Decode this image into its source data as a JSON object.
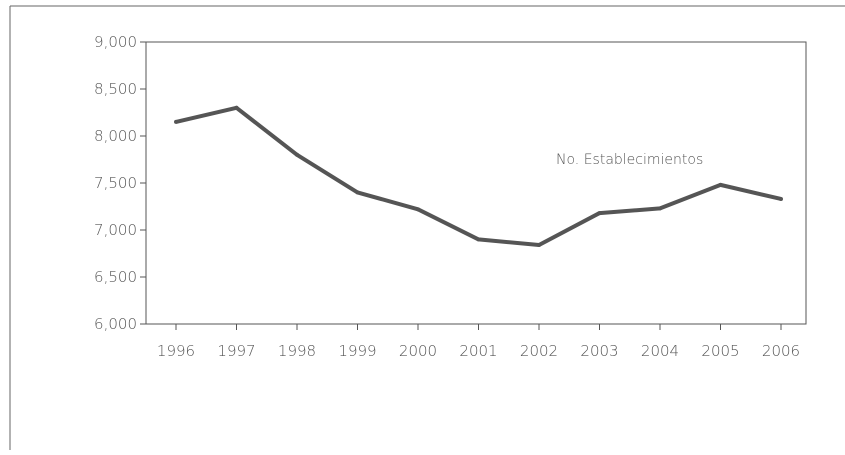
{
  "chart_data": {
    "type": "line",
    "x": [
      "1996",
      "1997",
      "1998",
      "1999",
      "2000",
      "2001",
      "2002",
      "2003",
      "2004",
      "2005",
      "2006"
    ],
    "series": [
      {
        "name": "No. Establecimientos",
        "values": [
          8150,
          8300,
          7800,
          7400,
          7220,
          6900,
          6840,
          7180,
          7230,
          7480,
          7330
        ]
      }
    ],
    "y_ticks": [
      "6,000",
      "6,500",
      "7,000",
      "7,500",
      "8,000",
      "8,500",
      "9,000"
    ],
    "ylim": [
      6000,
      9000
    ],
    "grid": false,
    "legend": "inline label",
    "title": "",
    "xlabel": "",
    "ylabel": ""
  },
  "colors": {
    "line": "#555555",
    "axis": "#555555",
    "border": "#666666"
  }
}
